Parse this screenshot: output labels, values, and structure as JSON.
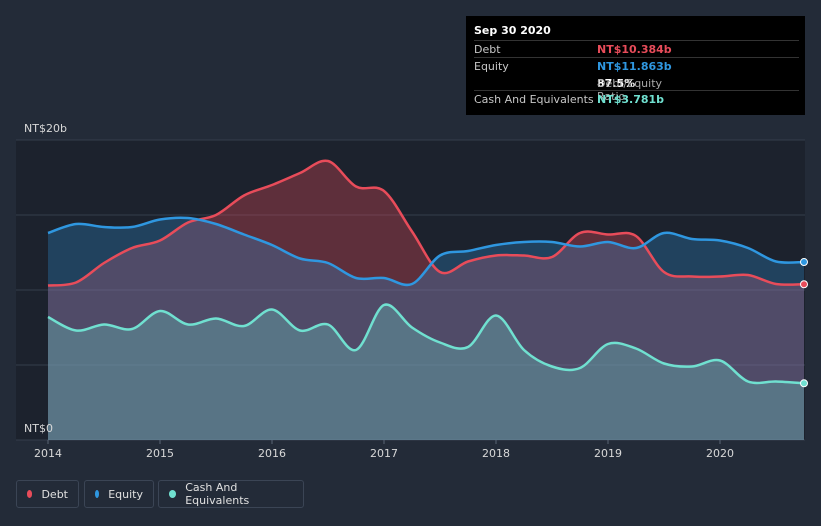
{
  "chart_data": {
    "type": "area",
    "x_ticks": [
      "2014",
      "2015",
      "2016",
      "2017",
      "2018",
      "2019",
      "2020"
    ],
    "x_range": [
      2014.0,
      2020.75
    ],
    "y_range": [
      0,
      20
    ],
    "y_top_label": "NT$20b",
    "y_bottom_label": "NT$0",
    "series": [
      {
        "name": "Debt",
        "color": "#e84c5a",
        "x": [
          2014.0,
          2014.25,
          2014.5,
          2014.75,
          2015.0,
          2015.25,
          2015.5,
          2015.75,
          2016.0,
          2016.25,
          2016.5,
          2016.75,
          2017.0,
          2017.25,
          2017.5,
          2017.75,
          2018.0,
          2018.25,
          2018.5,
          2018.75,
          2019.0,
          2019.25,
          2019.5,
          2019.75,
          2020.0,
          2020.25,
          2020.5,
          2020.75
        ],
        "values": [
          10.3,
          10.5,
          11.8,
          12.8,
          13.3,
          14.5,
          15.0,
          16.3,
          17.0,
          17.8,
          18.6,
          16.9,
          16.6,
          13.9,
          11.2,
          11.9,
          12.3,
          12.3,
          12.2,
          13.8,
          13.7,
          13.6,
          11.2,
          10.9,
          10.9,
          11.0,
          10.4,
          10.384
        ]
      },
      {
        "name": "Equity",
        "color": "#2f97e0",
        "x": [
          2014.0,
          2014.25,
          2014.5,
          2014.75,
          2015.0,
          2015.25,
          2015.5,
          2015.75,
          2016.0,
          2016.25,
          2016.5,
          2016.75,
          2017.0,
          2017.25,
          2017.5,
          2017.75,
          2018.0,
          2018.25,
          2018.5,
          2018.75,
          2019.0,
          2019.25,
          2019.5,
          2019.75,
          2020.0,
          2020.25,
          2020.5,
          2020.75
        ],
        "values": [
          13.8,
          14.4,
          14.2,
          14.2,
          14.7,
          14.8,
          14.4,
          13.7,
          13.0,
          12.1,
          11.8,
          10.8,
          10.8,
          10.4,
          12.3,
          12.6,
          13.0,
          13.2,
          13.2,
          12.9,
          13.2,
          12.8,
          13.8,
          13.4,
          13.3,
          12.8,
          11.9,
          11.863
        ]
      },
      {
        "name": "Cash And Equivalents",
        "color": "#70e0d0",
        "x": [
          2014.0,
          2014.25,
          2014.5,
          2014.75,
          2015.0,
          2015.25,
          2015.5,
          2015.75,
          2016.0,
          2016.25,
          2016.5,
          2016.75,
          2017.0,
          2017.25,
          2017.5,
          2017.75,
          2018.0,
          2018.25,
          2018.5,
          2018.75,
          2019.0,
          2019.25,
          2019.5,
          2019.75,
          2020.0,
          2020.25,
          2020.5,
          2020.75
        ],
        "values": [
          8.2,
          7.3,
          7.7,
          7.4,
          8.6,
          7.7,
          8.1,
          7.6,
          8.7,
          7.3,
          7.7,
          6.0,
          9.0,
          7.5,
          6.5,
          6.2,
          8.3,
          6.0,
          4.9,
          4.8,
          6.4,
          6.1,
          5.1,
          4.9,
          5.3,
          3.9,
          3.9,
          3.781
        ]
      }
    ]
  },
  "tooltip": {
    "date": "Sep 30 2020",
    "debt_label": "Debt",
    "debt_value": "NT$10.384b",
    "equity_label": "Equity",
    "equity_value": "NT$11.863b",
    "ratio_value": "87.5%",
    "ratio_label": "Debt/Equity Ratio",
    "cash_label": "Cash And Equivalents",
    "cash_value": "NT$3.781b"
  },
  "legend": {
    "debt": "Debt",
    "equity": "Equity",
    "cash": "Cash And Equivalents"
  },
  "colors": {
    "debt": "#e84c5a",
    "equity": "#2f97e0",
    "cash": "#70e0d0",
    "background": "#232b38",
    "plot_background": "#1c222d"
  }
}
